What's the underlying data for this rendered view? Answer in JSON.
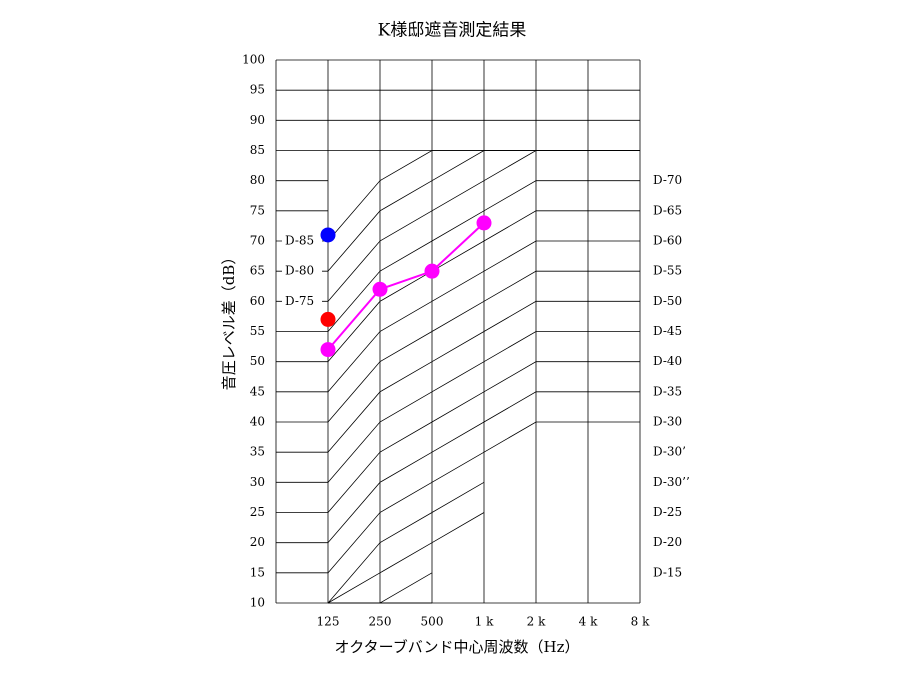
{
  "chart_data": {
    "type": "line",
    "title": "K様邸遮音測定結果",
    "x_label": "オクターブバンド中心周波数（Hz）",
    "y_label": "音圧レベル差（dB）",
    "categories": [
      null,
      "125",
      "250",
      "500",
      "1 k",
      "2 k",
      "4 k",
      "8 k"
    ],
    "series": [
      {
        "color": "#ff00ff",
        "values": [
          null,
          52,
          62,
          65,
          73,
          null,
          null,
          null
        ]
      },
      {
        "color": "#ff0000",
        "values": [
          null,
          57,
          null,
          null,
          null,
          null,
          null,
          null
        ]
      },
      {
        "color": "#0000ff",
        "values": [
          null,
          71,
          null,
          null,
          null,
          null,
          null,
          null
        ]
      }
    ],
    "ylim": [
      10,
      100
    ],
    "yticks": [
      10,
      15,
      20,
      25,
      30,
      35,
      40,
      45,
      50,
      55,
      60,
      65,
      70,
      75,
      80,
      85,
      90,
      95,
      100
    ],
    "left_curve_labels": [
      {
        "value": 70,
        "label": "D-85"
      },
      {
        "value": 65,
        "label": "D-80"
      },
      {
        "value": 60,
        "label": "D-75"
      }
    ],
    "right_curve_labels": [
      {
        "value": 80,
        "label": "D-70"
      },
      {
        "value": 75,
        "label": "D-65"
      },
      {
        "value": 70,
        "label": "D-60"
      },
      {
        "value": 65,
        "label": "D-55"
      },
      {
        "value": 60,
        "label": "D-50"
      },
      {
        "value": 55,
        "label": "D-45"
      },
      {
        "value": 50,
        "label": "D-40"
      },
      {
        "value": 45,
        "label": "D-35"
      },
      {
        "value": 40,
        "label": "D-30"
      },
      {
        "value": 35,
        "label": "D-30’"
      },
      {
        "value": 30,
        "label": "D-30’’"
      },
      {
        "value": 25,
        "label": "D-25"
      },
      {
        "value": 20,
        "label": "D-20"
      },
      {
        "value": 15,
        "label": "D-15"
      }
    ]
  }
}
